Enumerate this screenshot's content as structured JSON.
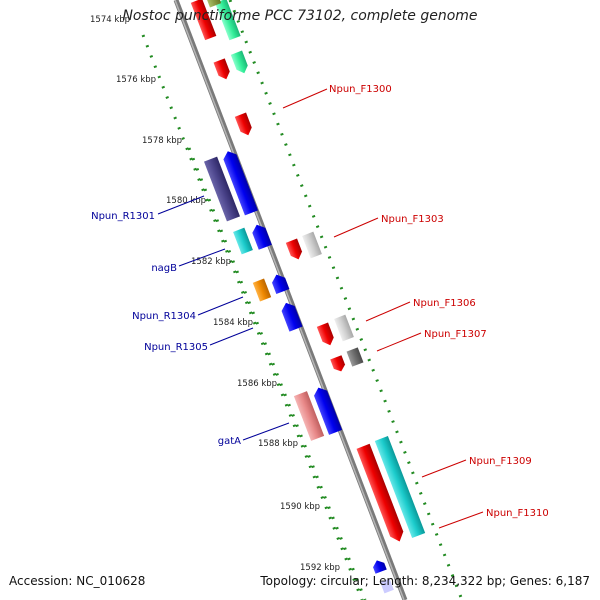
{
  "title": "Nostoc punctiforme PCC 73102, complete genome",
  "footer": {
    "accession": "Accession: NC_010628",
    "summary": "Topology: circular; Length: 8,234,322 bp; Genes: 6,187"
  },
  "colors": {
    "axis": "#888888",
    "tick": "#228B22",
    "forward_label": "#cc0000",
    "reverse_label": "#000099"
  },
  "ticks": [
    {
      "label": "1574 kbp"
    },
    {
      "label": "1576 kbp"
    },
    {
      "label": "1578 kbp"
    },
    {
      "label": "1580 kbp"
    },
    {
      "label": "1582 kbp"
    },
    {
      "label": "1584 kbp"
    },
    {
      "label": "1586 kbp"
    },
    {
      "label": "1588 kbp"
    },
    {
      "label": "1590 kbp"
    },
    {
      "label": "1592 kbp"
    }
  ],
  "gene_labels": [
    {
      "name": "Npun_F1300",
      "strand": "forward"
    },
    {
      "name": "Npun_F1303",
      "strand": "forward"
    },
    {
      "name": "Npun_F1306",
      "strand": "forward"
    },
    {
      "name": "Npun_F1307",
      "strand": "forward"
    },
    {
      "name": "Npun_F1309",
      "strand": "forward"
    },
    {
      "name": "Npun_F1310",
      "strand": "forward"
    },
    {
      "name": "Npun_R1301",
      "strand": "reverse"
    },
    {
      "name": "nagB",
      "strand": "reverse"
    },
    {
      "name": "Npun_R1304",
      "strand": "reverse"
    },
    {
      "name": "Npun_R1305",
      "strand": "reverse"
    },
    {
      "name": "gatA",
      "strand": "reverse"
    }
  ]
}
